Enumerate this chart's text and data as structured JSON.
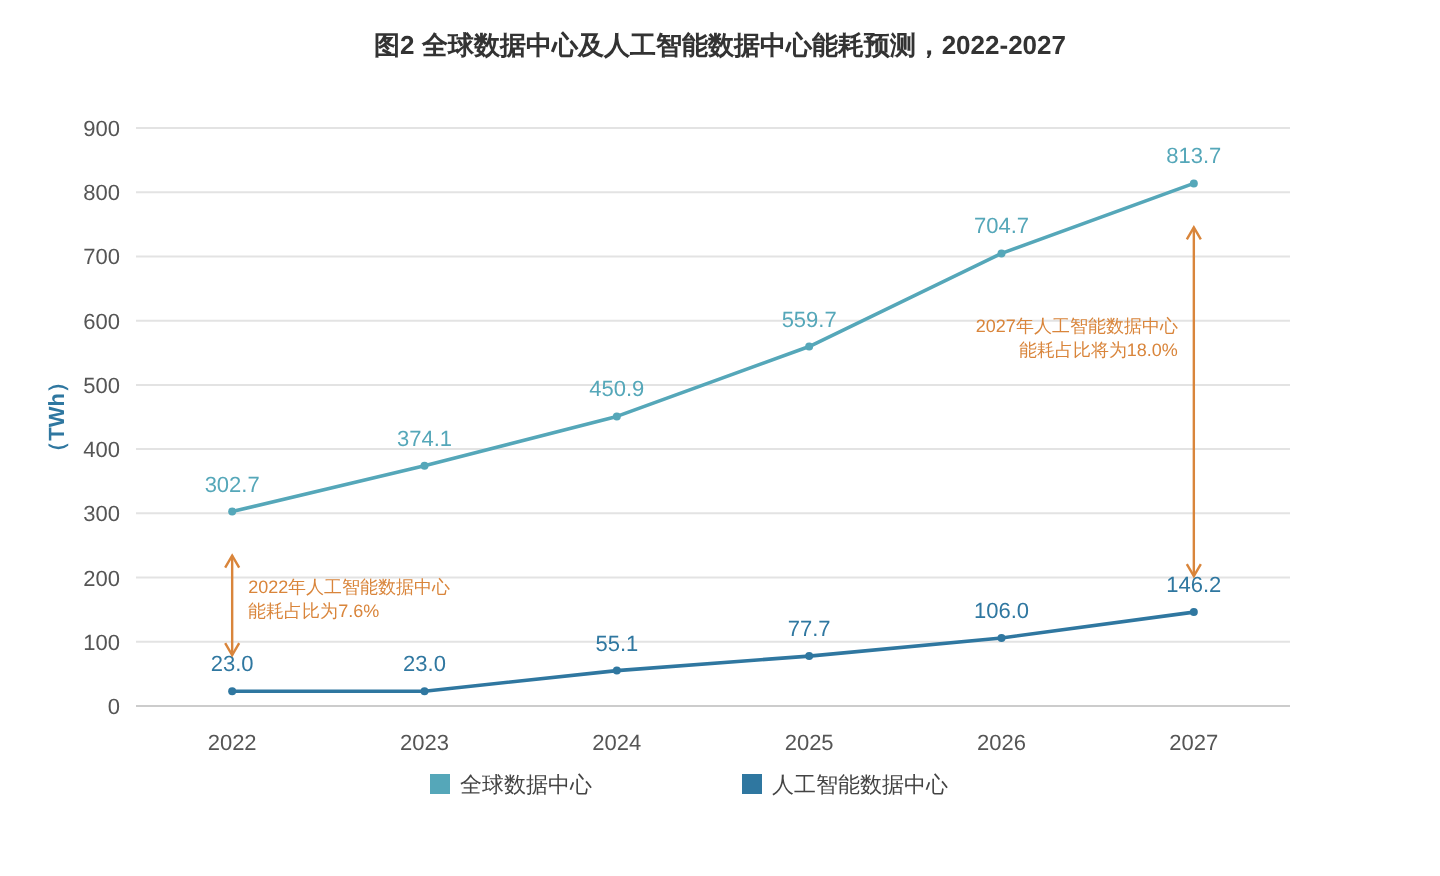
{
  "chart_data": {
    "type": "line",
    "title": "图2 全球数据中心及人工智能数据中心能耗预测，2022-2027",
    "ylabel": "（TWh）",
    "categories": [
      "2022",
      "2023",
      "2024",
      "2025",
      "2026",
      "2027"
    ],
    "series": [
      {
        "name": "全球数据中心",
        "color": "#55a7b9",
        "values": [
          302.7,
          374.1,
          450.9,
          559.7,
          704.7,
          813.7
        ],
        "value_labels": [
          "302.7",
          "374.1",
          "450.9",
          "559.7",
          "704.7",
          "813.7"
        ]
      },
      {
        "name": "人工智能数据中心",
        "color": "#2f77a0",
        "values": [
          23.0,
          23.0,
          55.1,
          77.7,
          106.0,
          146.2
        ],
        "value_labels": [
          "23.0",
          "23.0",
          "55.1",
          "77.7",
          "106.0",
          "146.2"
        ]
      }
    ],
    "ylim": [
      0,
      900
    ],
    "yticks": [
      0,
      100,
      200,
      300,
      400,
      500,
      600,
      700,
      800,
      900
    ],
    "grid": "y",
    "legend": "bottom",
    "marker": "circle",
    "annotations": [
      "2022年人工智能数据中心能耗占比为7.6%",
      "2027年人工智能数据中心能耗占比将为18.0%"
    ]
  }
}
